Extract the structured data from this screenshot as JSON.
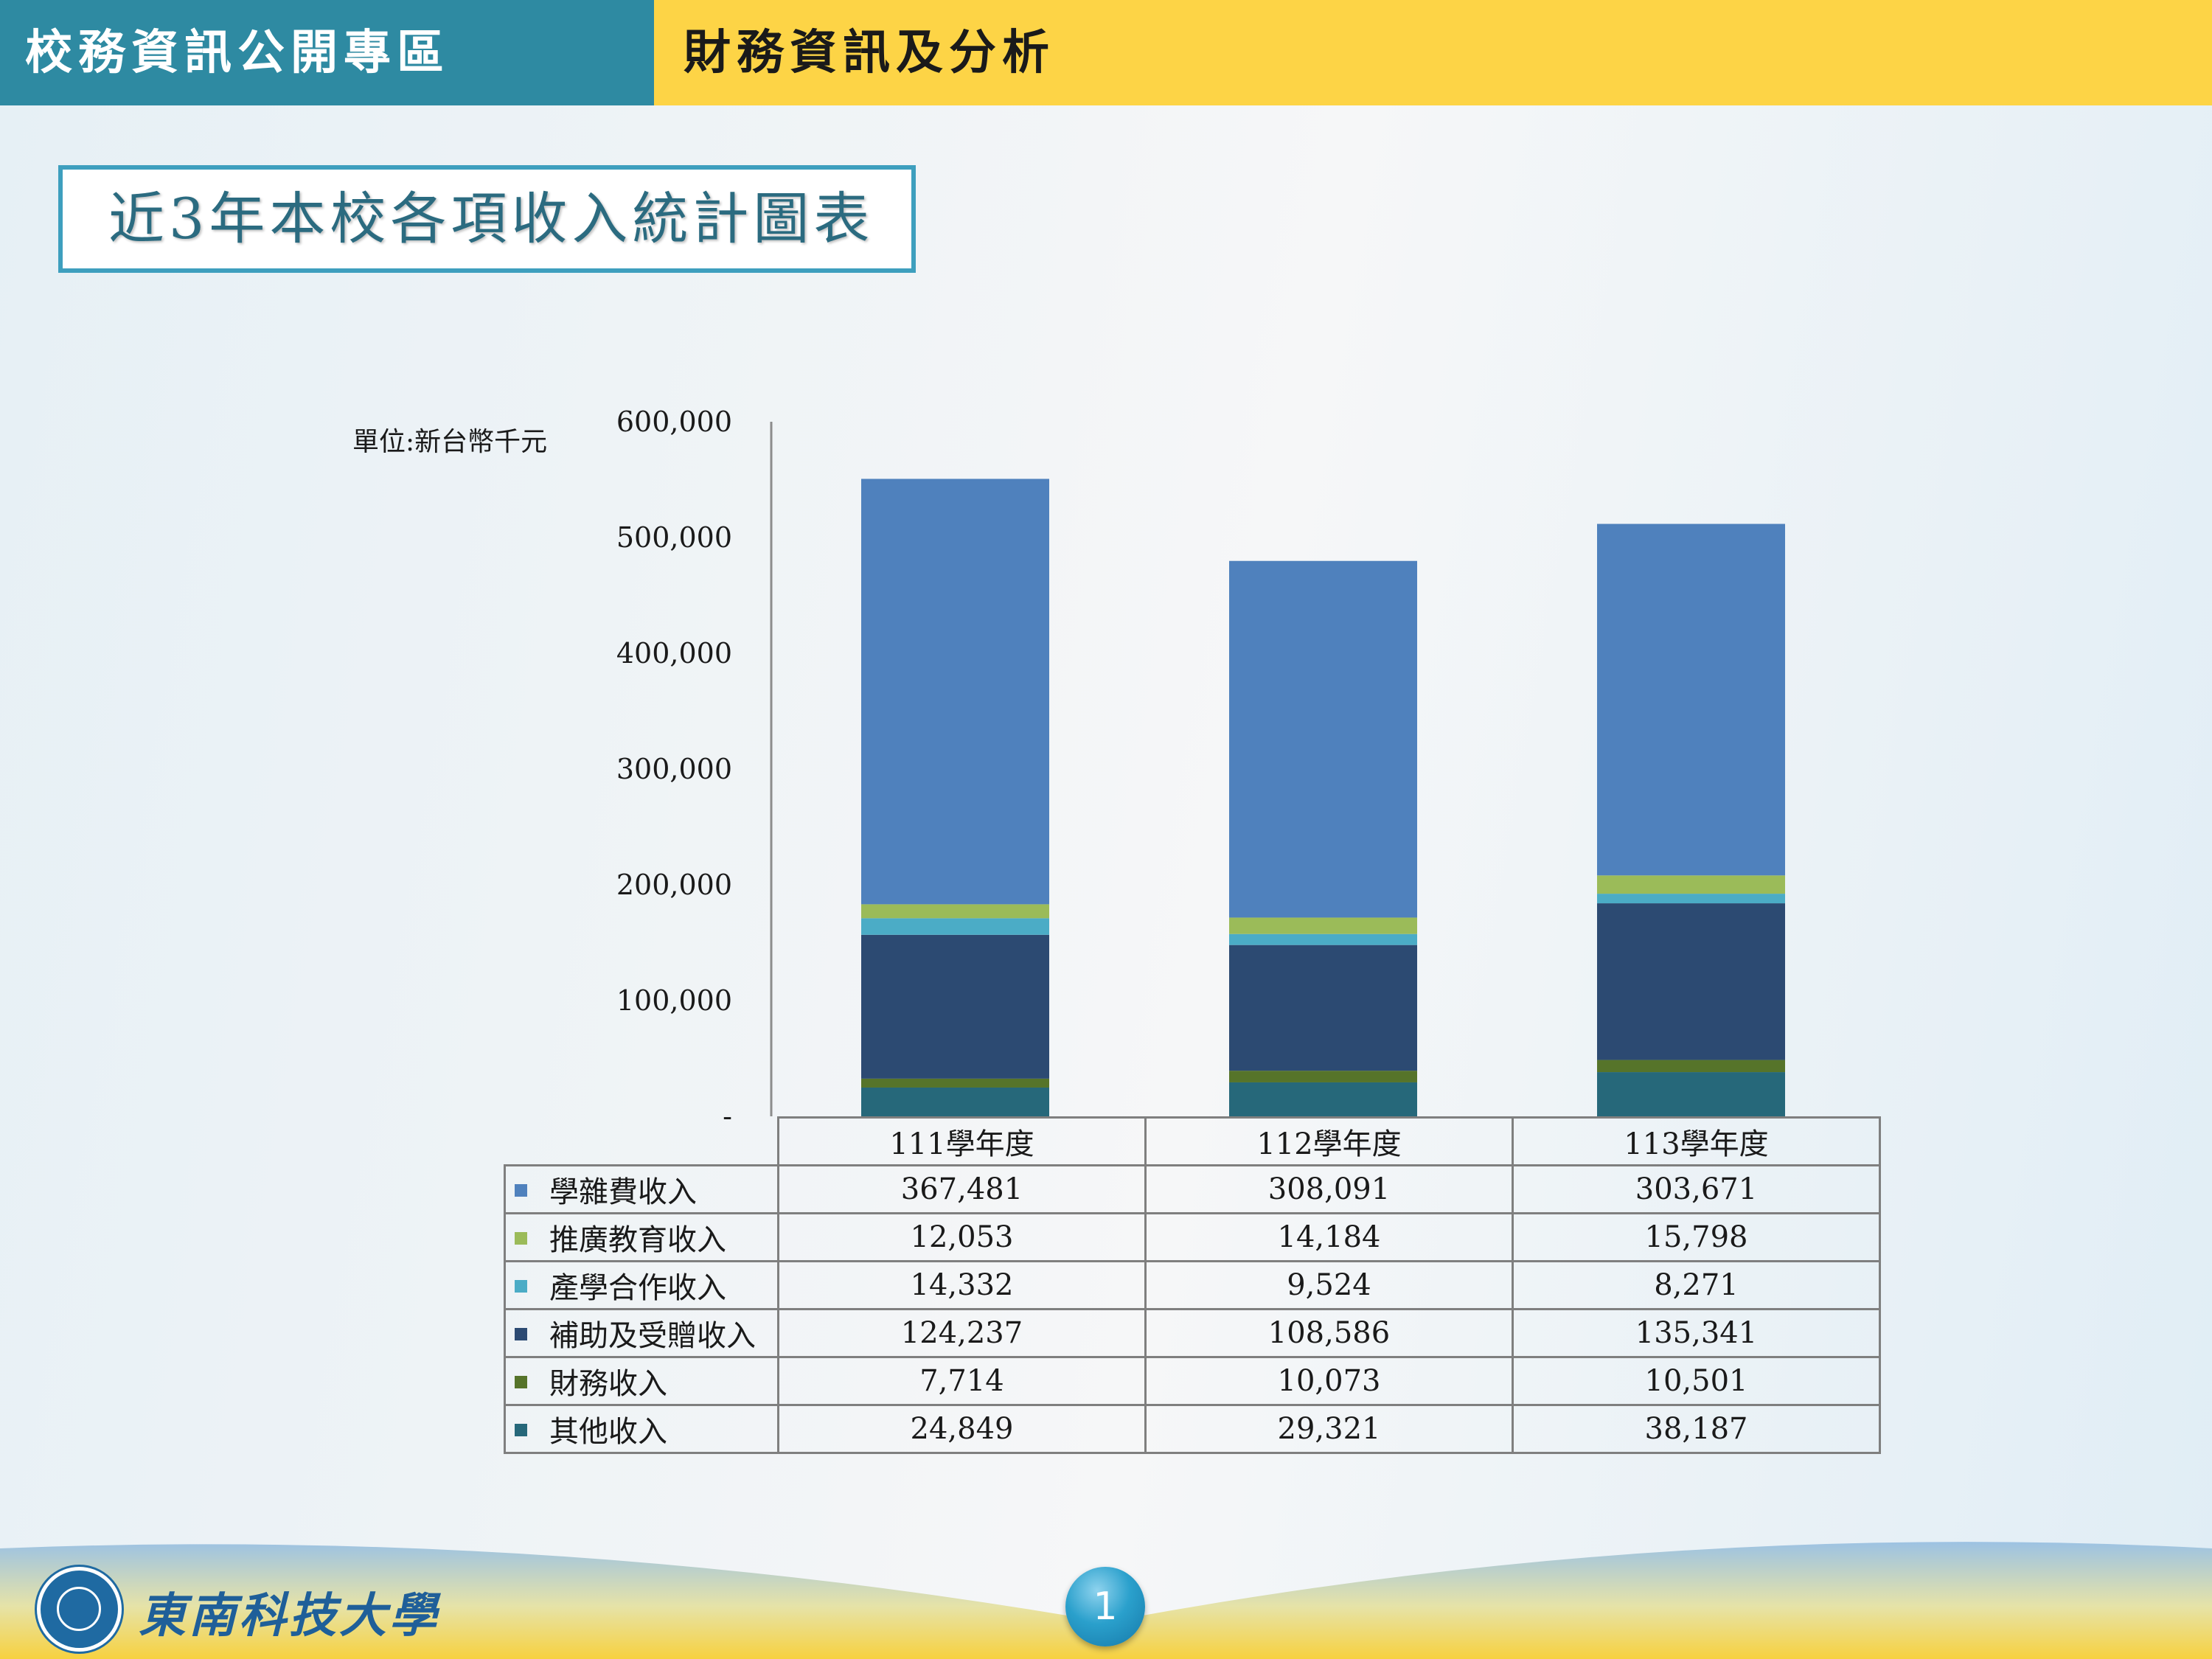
{
  "header": {
    "left_title": "校務資訊公開專區",
    "right_title": "財務資訊及分析"
  },
  "slide_title": "近3年本校各項收入統計圖表",
  "unit_label": "單位:新台幣千元",
  "footer": {
    "school_name": "東南科技大學",
    "page_number": "1"
  },
  "colors": {
    "header_left": "#2e8aa2",
    "header_right": "#fdd446"
  },
  "chart_data": {
    "type": "bar",
    "stacked": true,
    "categories": [
      "111學年度",
      "112學年度",
      "113學年度"
    ],
    "ylim": [
      0,
      600000
    ],
    "yticks": [
      0,
      100000,
      200000,
      300000,
      400000,
      500000,
      600000
    ],
    "ytick_labels": [
      "-",
      "100,000",
      "200,000",
      "300,000",
      "400,000",
      "500,000",
      "600,000"
    ],
    "series": [
      {
        "name": "其他收入",
        "color": "#26687a",
        "values": [
          24849,
          29321,
          38187
        ],
        "labels": [
          "24,849",
          "29,321",
          "38,187"
        ]
      },
      {
        "name": "財務收入",
        "color": "#56742a",
        "values": [
          7714,
          10073,
          10501
        ],
        "labels": [
          "7,714",
          "10,073",
          "10,501"
        ]
      },
      {
        "name": "補助及受贈收入",
        "color": "#2c4a72",
        "values": [
          124237,
          108586,
          135341
        ],
        "labels": [
          "124,237",
          "108,586",
          "135,341"
        ]
      },
      {
        "name": "產學合作收入",
        "color": "#4bacc6",
        "values": [
          14332,
          9524,
          8271
        ],
        "labels": [
          "14,332",
          "9,524",
          "8,271"
        ]
      },
      {
        "name": "推廣教育收入",
        "color": "#9bbb59",
        "values": [
          12053,
          14184,
          15798
        ],
        "labels": [
          "12,053",
          "14,184",
          "15,798"
        ]
      },
      {
        "name": "學雜費收入",
        "color": "#4f81bd",
        "values": [
          367481,
          308091,
          303671
        ],
        "labels": [
          "367,481",
          "308,091",
          "303,671"
        ]
      }
    ],
    "table_order": [
      "學雜費收入",
      "推廣教育收入",
      "產學合作收入",
      "補助及受贈收入",
      "財務收入",
      "其他收入"
    ]
  }
}
